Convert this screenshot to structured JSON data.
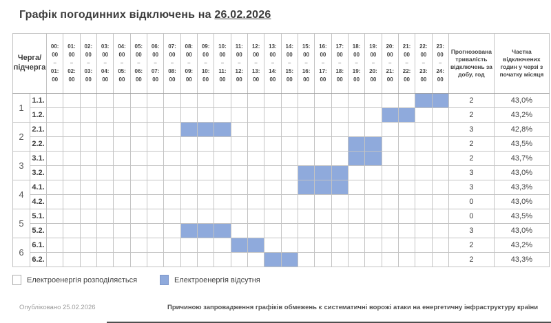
{
  "title": {
    "prefix": "Графік погодинних відключень на ",
    "date": "26.02.2026"
  },
  "chart_data": {
    "type": "heatmap",
    "title": "Графік погодинних відключень на 26.02.2026",
    "corner_label_line1": "Черга/",
    "corner_label_line2": "підчерга",
    "duration_header": "Прогнозована тривалість відключень за добу, год",
    "share_header": "Частка відключених годин у черзі з початку місяця",
    "columns": [
      {
        "start": "00:00",
        "end": "01:00"
      },
      {
        "start": "01:00",
        "end": "02:00"
      },
      {
        "start": "02:00",
        "end": "03:00"
      },
      {
        "start": "03:00",
        "end": "04:00"
      },
      {
        "start": "04:00",
        "end": "05:00"
      },
      {
        "start": "05:00",
        "end": "06:00"
      },
      {
        "start": "06:00",
        "end": "07:00"
      },
      {
        "start": "07:00",
        "end": "08:00"
      },
      {
        "start": "08:00",
        "end": "09:00"
      },
      {
        "start": "09:00",
        "end": "10:00"
      },
      {
        "start": "10:00",
        "end": "11:00"
      },
      {
        "start": "11:00",
        "end": "12:00"
      },
      {
        "start": "12:00",
        "end": "13:00"
      },
      {
        "start": "13:00",
        "end": "14:00"
      },
      {
        "start": "14:00",
        "end": "15:00"
      },
      {
        "start": "15:00",
        "end": "16:00"
      },
      {
        "start": "16:00",
        "end": "17:00"
      },
      {
        "start": "17:00",
        "end": "18:00"
      },
      {
        "start": "18:00",
        "end": "19:00"
      },
      {
        "start": "19:00",
        "end": "20:00"
      },
      {
        "start": "20:00",
        "end": "21:00"
      },
      {
        "start": "21:00",
        "end": "22:00"
      },
      {
        "start": "22:00",
        "end": "23:00"
      },
      {
        "start": "23:00",
        "end": "24:00"
      }
    ],
    "rows": [
      {
        "queue": "1",
        "subqueue": "1.1.",
        "outage_intervals": [
          [
            22,
            24
          ]
        ],
        "forecast_hours": "2",
        "share_month": "43,0%"
      },
      {
        "queue": "1",
        "subqueue": "1.2.",
        "outage_intervals": [
          [
            20,
            22
          ]
        ],
        "forecast_hours": "2",
        "share_month": "43,2%"
      },
      {
        "queue": "2",
        "subqueue": "2.1.",
        "outage_intervals": [
          [
            8,
            11
          ]
        ],
        "forecast_hours": "3",
        "share_month": "42,8%"
      },
      {
        "queue": "2",
        "subqueue": "2.2.",
        "outage_intervals": [
          [
            18,
            20
          ]
        ],
        "forecast_hours": "2",
        "share_month": "43,5%"
      },
      {
        "queue": "3",
        "subqueue": "3.1.",
        "outage_intervals": [
          [
            18,
            20
          ]
        ],
        "forecast_hours": "2",
        "share_month": "43,7%"
      },
      {
        "queue": "3",
        "subqueue": "3.2.",
        "outage_intervals": [
          [
            15,
            18
          ]
        ],
        "forecast_hours": "3",
        "share_month": "43,0%"
      },
      {
        "queue": "4",
        "subqueue": "4.1.",
        "outage_intervals": [
          [
            15,
            18
          ]
        ],
        "forecast_hours": "3",
        "share_month": "43,3%"
      },
      {
        "queue": "4",
        "subqueue": "4.2.",
        "outage_intervals": [],
        "forecast_hours": "0",
        "share_month": "43,0%"
      },
      {
        "queue": "5",
        "subqueue": "5.1.",
        "outage_intervals": [],
        "forecast_hours": "0",
        "share_month": "43,5%"
      },
      {
        "queue": "5",
        "subqueue": "5.2.",
        "outage_intervals": [
          [
            8,
            11
          ]
        ],
        "forecast_hours": "3",
        "share_month": "43,0%"
      },
      {
        "queue": "6",
        "subqueue": "6.1.",
        "outage_intervals": [
          [
            11,
            13
          ]
        ],
        "forecast_hours": "2",
        "share_month": "43,2%"
      },
      {
        "queue": "6",
        "subqueue": "6.2.",
        "outage_intervals": [
          [
            13,
            15
          ]
        ],
        "forecast_hours": "2",
        "share_month": "43,3%"
      }
    ]
  },
  "legend": {
    "items": [
      {
        "label": "Електроенергія розподіляється",
        "state": "supply"
      },
      {
        "label": "Електроенергія відсутня",
        "state": "outage"
      }
    ]
  },
  "footer": {
    "published": "Опубліковано 25.02.2026",
    "reason": "Причиною запровадження графіків обмежень є систематичні ворожі атаки на енергетичну інфраструктуру країни"
  },
  "colors": {
    "outage_fill": "#8faadc",
    "grid_line": "#c3c3c3",
    "group_line": "#9e9e9e"
  }
}
